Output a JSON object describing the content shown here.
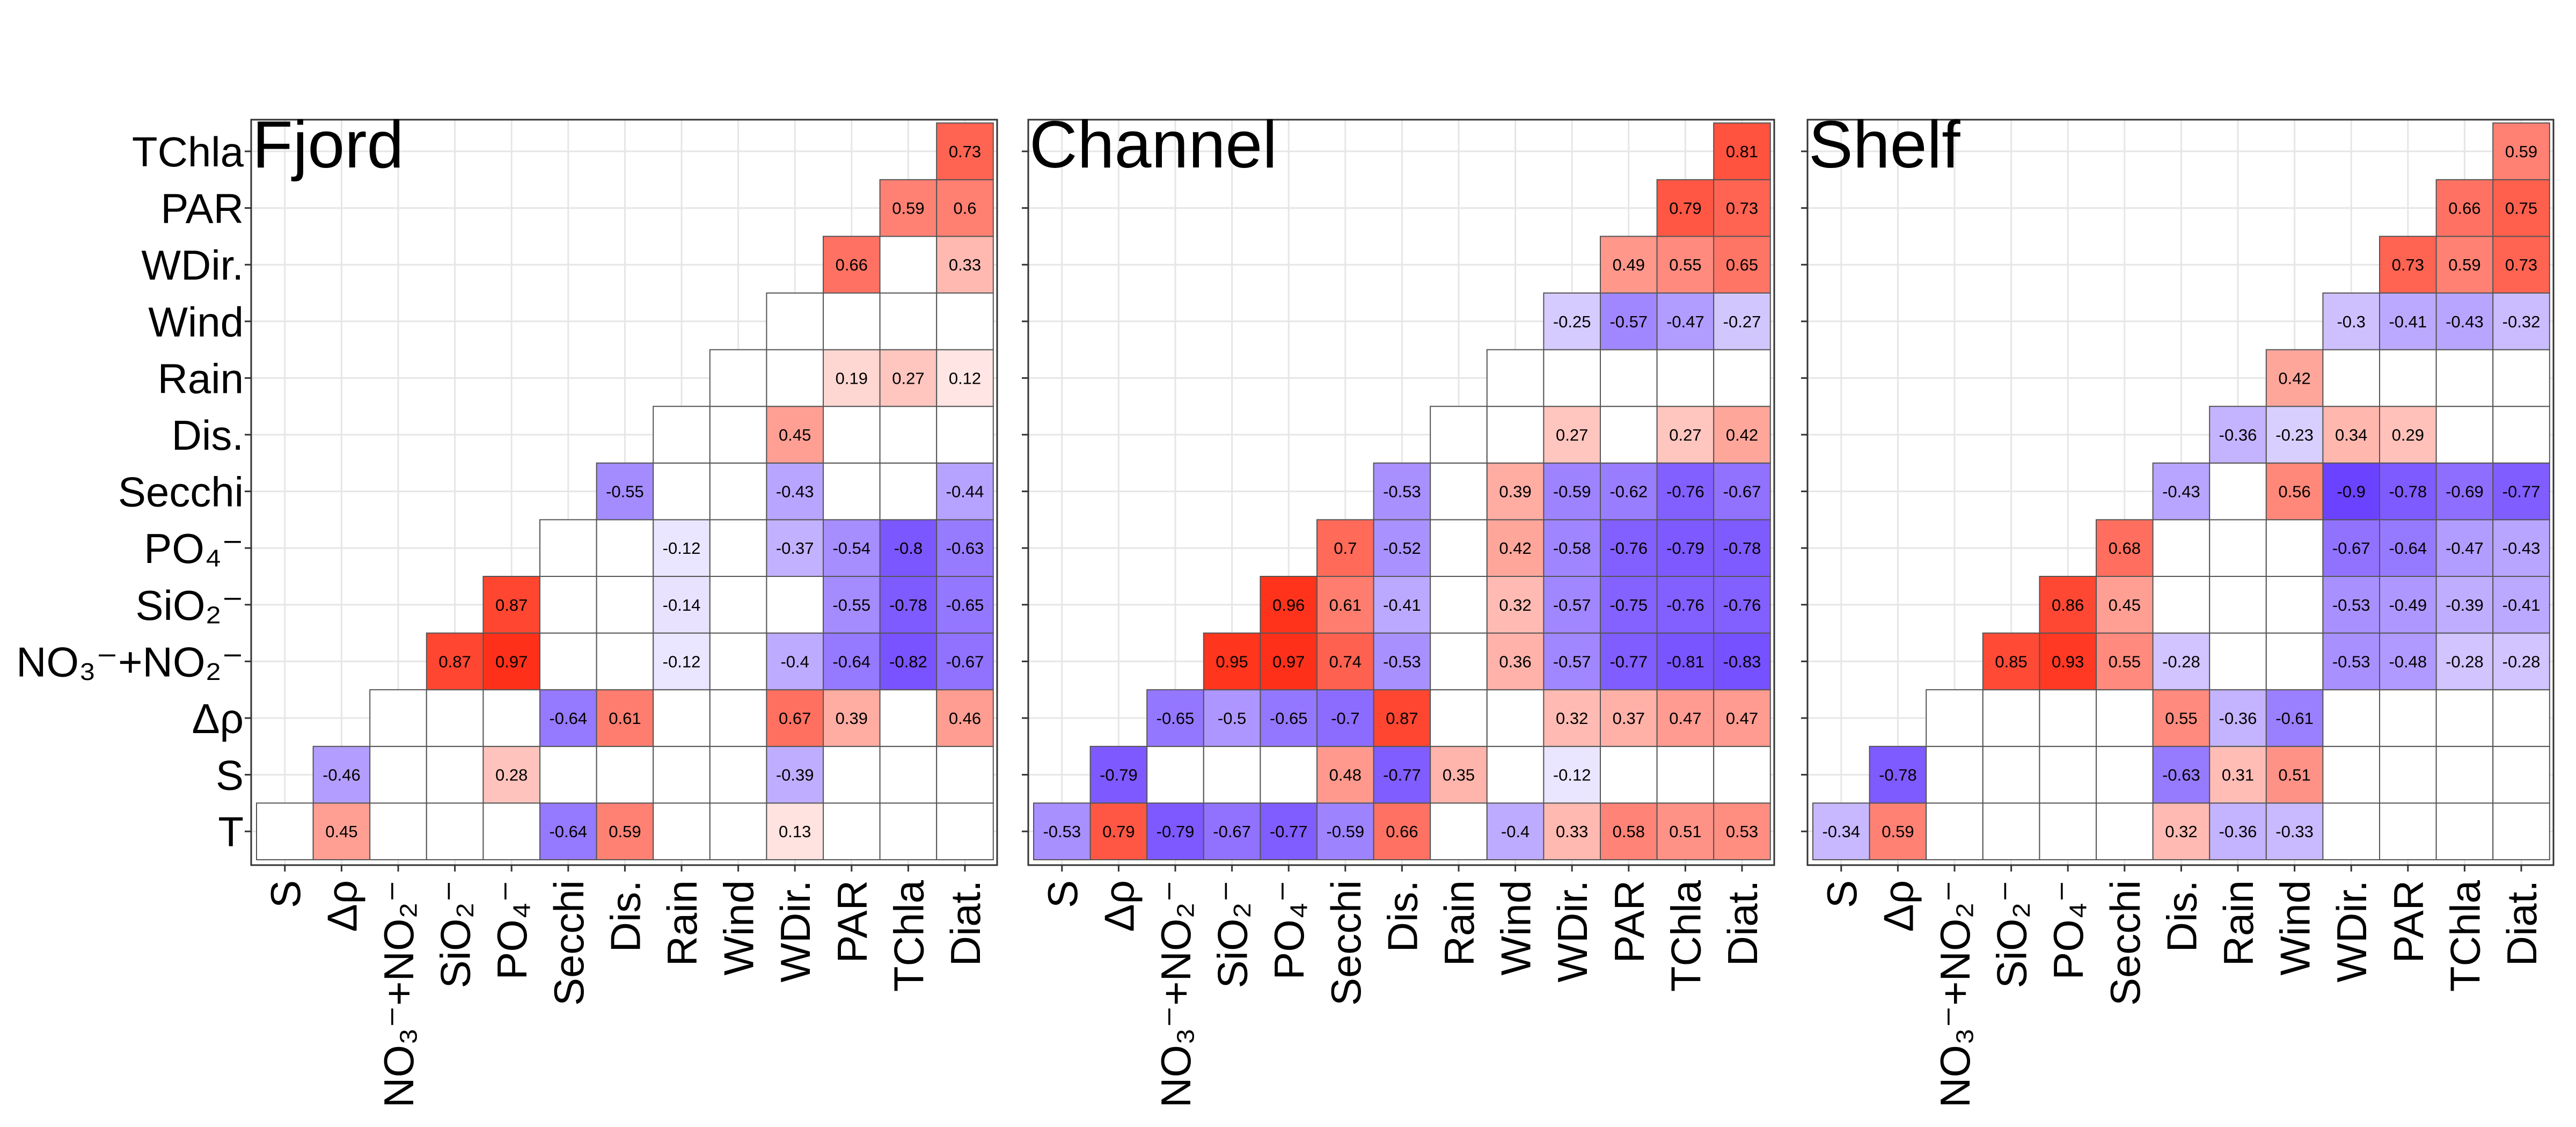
{
  "figure": {
    "row_labels": [
      "TChla",
      "PAR",
      "WDir.",
      "Wind",
      "Rain",
      "Dis.",
      "Secchi",
      "PO₄⁻",
      "SiO₂⁻",
      "NO₃⁻+NO₂⁻",
      "Δρ",
      "S",
      "T"
    ],
    "colors": {
      "negative": "#5a2dff",
      "zero": "#ffffff",
      "positive": "#ff2a12",
      "grid": "#e6e6e6",
      "cell_border": "#555555"
    }
  },
  "chart_data": [
    {
      "type": "heatmap",
      "title": "Fjord",
      "columns": [
        "S",
        "Δρ",
        "NO₃⁻+NO₂⁻",
        "SiO₂⁻",
        "PO₄⁻",
        "Secchi",
        "Dis.",
        "Rain",
        "Wind",
        "WDir.",
        "PAR",
        "TChla",
        "Diat."
      ],
      "rows": [
        "T",
        "S",
        "Δρ",
        "NO₃⁻+NO₂⁻",
        "SiO₂⁻",
        "PO₄⁻",
        "Secchi",
        "Dis.",
        "Rain",
        "Wind",
        "WDir.",
        "PAR",
        "TChla"
      ],
      "values": [
        [
          null,
          0.45,
          null,
          null,
          null,
          -0.64,
          0.59,
          null,
          null,
          0.13,
          null,
          null,
          null
        ],
        [
          null,
          -0.46,
          null,
          null,
          0.28,
          null,
          null,
          null,
          null,
          -0.39,
          null,
          null,
          null
        ],
        [
          null,
          null,
          null,
          null,
          null,
          -0.64,
          0.61,
          null,
          null,
          0.67,
          0.39,
          null,
          0.46
        ],
        [
          null,
          null,
          null,
          0.87,
          0.97,
          null,
          null,
          -0.12,
          null,
          -0.4,
          -0.64,
          -0.82,
          -0.67
        ],
        [
          null,
          null,
          null,
          null,
          0.87,
          null,
          null,
          -0.14,
          null,
          null,
          -0.55,
          -0.78,
          -0.65
        ],
        [
          null,
          null,
          null,
          null,
          null,
          null,
          null,
          -0.12,
          null,
          -0.37,
          -0.54,
          -0.8,
          -0.63
        ],
        [
          null,
          null,
          null,
          null,
          null,
          null,
          -0.55,
          null,
          null,
          -0.43,
          null,
          null,
          -0.44
        ],
        [
          null,
          null,
          null,
          null,
          null,
          null,
          null,
          null,
          null,
          0.45,
          null,
          null,
          null
        ],
        [
          null,
          null,
          null,
          null,
          null,
          null,
          null,
          null,
          null,
          null,
          0.19,
          0.27,
          0.12
        ],
        [
          null,
          null,
          null,
          null,
          null,
          null,
          null,
          null,
          null,
          null,
          null,
          null,
          null
        ],
        [
          null,
          null,
          null,
          null,
          null,
          null,
          null,
          null,
          null,
          null,
          0.66,
          null,
          0.33
        ],
        [
          null,
          null,
          null,
          null,
          null,
          null,
          null,
          null,
          null,
          null,
          null,
          0.59,
          0.6
        ],
        [
          null,
          null,
          null,
          null,
          null,
          null,
          null,
          null,
          null,
          null,
          null,
          null,
          0.73
        ]
      ]
    },
    {
      "type": "heatmap",
      "title": "Channel",
      "columns": [
        "S",
        "Δρ",
        "NO₃⁻+NO₂⁻",
        "SiO₂⁻",
        "PO₄⁻",
        "Secchi",
        "Dis.",
        "Rain",
        "Wind",
        "WDir.",
        "PAR",
        "TChla",
        "Diat."
      ],
      "rows": [
        "T",
        "S",
        "Δρ",
        "NO₃⁻+NO₂⁻",
        "SiO₂⁻",
        "PO₄⁻",
        "Secchi",
        "Dis.",
        "Rain",
        "Wind",
        "WDir.",
        "PAR",
        "TChla"
      ],
      "values": [
        [
          -0.53,
          0.79,
          -0.79,
          -0.67,
          -0.77,
          -0.59,
          0.66,
          null,
          -0.4,
          0.33,
          0.58,
          0.51,
          0.53
        ],
        [
          null,
          -0.79,
          null,
          null,
          null,
          0.48,
          -0.77,
          0.35,
          null,
          -0.12,
          null,
          null,
          null
        ],
        [
          null,
          null,
          -0.65,
          -0.5,
          -0.65,
          -0.7,
          0.87,
          null,
          null,
          0.32,
          0.37,
          0.47,
          0.47
        ],
        [
          null,
          null,
          null,
          0.95,
          0.97,
          0.74,
          -0.53,
          null,
          0.36,
          -0.57,
          -0.77,
          -0.81,
          -0.83
        ],
        [
          null,
          null,
          null,
          null,
          0.96,
          0.61,
          -0.41,
          null,
          0.32,
          -0.57,
          -0.75,
          -0.76,
          -0.76
        ],
        [
          null,
          null,
          null,
          null,
          null,
          0.7,
          -0.52,
          null,
          0.42,
          -0.58,
          -0.76,
          -0.79,
          -0.78
        ],
        [
          null,
          null,
          null,
          null,
          null,
          null,
          -0.53,
          null,
          0.39,
          -0.59,
          -0.62,
          -0.76,
          -0.67
        ],
        [
          null,
          null,
          null,
          null,
          null,
          null,
          null,
          null,
          null,
          0.27,
          null,
          0.27,
          0.42
        ],
        [
          null,
          null,
          null,
          null,
          null,
          null,
          null,
          null,
          null,
          null,
          null,
          null,
          null
        ],
        [
          null,
          null,
          null,
          null,
          null,
          null,
          null,
          null,
          null,
          -0.25,
          -0.57,
          -0.47,
          -0.27
        ],
        [
          null,
          null,
          null,
          null,
          null,
          null,
          null,
          null,
          null,
          null,
          0.49,
          0.55,
          0.65
        ],
        [
          null,
          null,
          null,
          null,
          null,
          null,
          null,
          null,
          null,
          null,
          null,
          0.79,
          0.73
        ],
        [
          null,
          null,
          null,
          null,
          null,
          null,
          null,
          null,
          null,
          null,
          null,
          null,
          0.81
        ]
      ]
    },
    {
      "type": "heatmap",
      "title": "Shelf",
      "columns": [
        "S",
        "Δρ",
        "NO₃⁻+NO₂⁻",
        "SiO₂⁻",
        "PO₄⁻",
        "Secchi",
        "Dis.",
        "Rain",
        "Wind",
        "WDir.",
        "PAR",
        "TChla",
        "Diat."
      ],
      "rows": [
        "T",
        "S",
        "Δρ",
        "NO₃⁻+NO₂⁻",
        "SiO₂⁻",
        "PO₄⁻",
        "Secchi",
        "Dis.",
        "Rain",
        "Wind",
        "WDir.",
        "PAR",
        "TChla"
      ],
      "values": [
        [
          -0.34,
          0.59,
          null,
          null,
          null,
          null,
          0.32,
          -0.36,
          -0.33,
          null,
          null,
          null,
          null
        ],
        [
          null,
          -0.78,
          null,
          null,
          null,
          null,
          -0.63,
          0.31,
          0.51,
          null,
          null,
          null,
          null
        ],
        [
          null,
          null,
          null,
          null,
          null,
          null,
          0.55,
          -0.36,
          -0.61,
          null,
          null,
          null,
          null
        ],
        [
          null,
          null,
          null,
          0.85,
          0.93,
          0.55,
          -0.28,
          null,
          null,
          -0.53,
          -0.48,
          -0.28,
          -0.28
        ],
        [
          null,
          null,
          null,
          null,
          0.86,
          0.45,
          null,
          null,
          null,
          -0.53,
          -0.49,
          -0.39,
          -0.41
        ],
        [
          null,
          null,
          null,
          null,
          null,
          0.68,
          null,
          null,
          null,
          -0.67,
          -0.64,
          -0.47,
          -0.43
        ],
        [
          null,
          null,
          null,
          null,
          null,
          null,
          -0.43,
          null,
          0.56,
          -0.9,
          -0.78,
          -0.69,
          -0.77
        ],
        [
          null,
          null,
          null,
          null,
          null,
          null,
          null,
          -0.36,
          -0.23,
          0.34,
          0.29,
          null,
          null
        ],
        [
          null,
          null,
          null,
          null,
          null,
          null,
          null,
          null,
          0.42,
          null,
          null,
          null,
          null
        ],
        [
          null,
          null,
          null,
          null,
          null,
          null,
          null,
          null,
          null,
          -0.3,
          -0.41,
          -0.43,
          -0.32
        ],
        [
          null,
          null,
          null,
          null,
          null,
          null,
          null,
          null,
          null,
          null,
          0.73,
          0.59,
          0.73
        ],
        [
          null,
          null,
          null,
          null,
          null,
          null,
          null,
          null,
          null,
          null,
          null,
          0.66,
          0.75
        ],
        [
          null,
          null,
          null,
          null,
          null,
          null,
          null,
          null,
          null,
          null,
          null,
          null,
          0.59
        ]
      ]
    }
  ]
}
